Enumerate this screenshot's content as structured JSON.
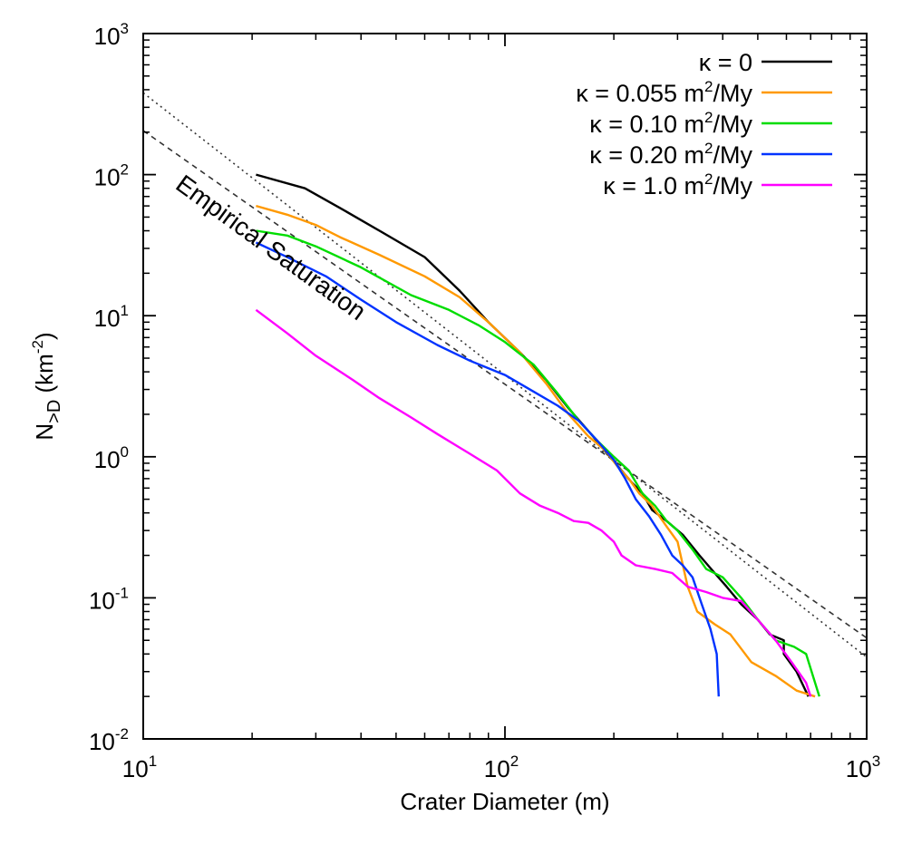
{
  "chart_data": {
    "type": "line",
    "title": "",
    "xlabel": "Crater Diameter (m)",
    "ylabel_main": "N",
    "ylabel_sub": ">D",
    "ylabel_unit_pre": " (km",
    "ylabel_unit_exp": "-2",
    "ylabel_unit_post": ")",
    "xscale": "log",
    "yscale": "log",
    "xlim": [
      10,
      1000
    ],
    "ylim": [
      0.01,
      1000
    ],
    "grid": false,
    "legend_position": "top-right",
    "x_ticks": [
      {
        "value": 10,
        "base": "10",
        "exp": "1"
      },
      {
        "value": 100,
        "base": "10",
        "exp": "2"
      },
      {
        "value": 1000,
        "base": "10",
        "exp": "3"
      }
    ],
    "y_ticks": [
      {
        "value": 0.01,
        "base": "10",
        "exp": "-2"
      },
      {
        "value": 0.1,
        "base": "10",
        "exp": "-1"
      },
      {
        "value": 1,
        "base": "10",
        "exp": "0"
      },
      {
        "value": 10,
        "base": "10",
        "exp": "1"
      },
      {
        "value": 100,
        "base": "10",
        "exp": "2"
      },
      {
        "value": 1000,
        "base": "10",
        "exp": "3"
      }
    ],
    "annotation": "Empirical Saturation",
    "reference_lines": [
      {
        "style": "dotted",
        "points": [
          [
            10,
            380
          ],
          [
            1000,
            0.038
          ]
        ]
      },
      {
        "style": "dashed",
        "points": [
          [
            10,
            205
          ],
          [
            1000,
            0.052
          ]
        ]
      }
    ],
    "series": [
      {
        "name_pre": "κ = 0",
        "name_exp": "",
        "name_post": "",
        "color": "#000000",
        "points": [
          [
            20.5,
            100
          ],
          [
            28,
            80
          ],
          [
            35,
            58
          ],
          [
            45,
            40
          ],
          [
            60,
            26
          ],
          [
            75,
            15
          ],
          [
            90,
            9
          ],
          [
            110,
            5.5
          ],
          [
            130,
            3.5
          ],
          [
            150,
            2.2
          ],
          [
            175,
            1.4
          ],
          [
            195,
            1.0
          ],
          [
            210,
            0.8
          ],
          [
            225,
            0.65
          ],
          [
            240,
            0.55
          ],
          [
            255,
            0.42
          ],
          [
            280,
            0.35
          ],
          [
            310,
            0.28
          ],
          [
            345,
            0.2
          ],
          [
            380,
            0.15
          ],
          [
            410,
            0.12
          ],
          [
            450,
            0.09
          ],
          [
            500,
            0.07
          ],
          [
            540,
            0.055
          ],
          [
            590,
            0.05
          ],
          [
            590,
            0.04
          ],
          [
            640,
            0.03
          ],
          [
            690,
            0.02
          ]
        ]
      },
      {
        "name_pre": "κ = 0.055 m",
        "name_exp": "2",
        "name_post": "/My",
        "color": "#ff9900",
        "points": [
          [
            20.5,
            60
          ],
          [
            25,
            52
          ],
          [
            30,
            44
          ],
          [
            35,
            36
          ],
          [
            45,
            27
          ],
          [
            60,
            19
          ],
          [
            75,
            13.5
          ],
          [
            90,
            9
          ],
          [
            110,
            5.5
          ],
          [
            130,
            3.3
          ],
          [
            150,
            2.0
          ],
          [
            170,
            1.4
          ],
          [
            190,
            1.1
          ],
          [
            205,
            0.85
          ],
          [
            220,
            0.7
          ],
          [
            235,
            0.55
          ],
          [
            255,
            0.45
          ],
          [
            280,
            0.32
          ],
          [
            300,
            0.25
          ],
          [
            320,
            0.12
          ],
          [
            340,
            0.08
          ],
          [
            380,
            0.065
          ],
          [
            420,
            0.055
          ],
          [
            480,
            0.035
          ],
          [
            560,
            0.028
          ],
          [
            640,
            0.022
          ],
          [
            720,
            0.02
          ]
        ]
      },
      {
        "name_pre": "κ = 0.10 m",
        "name_exp": "2",
        "name_post": "/My",
        "color": "#00dd00",
        "points": [
          [
            20.5,
            40
          ],
          [
            25,
            37
          ],
          [
            30,
            31
          ],
          [
            40,
            22
          ],
          [
            55,
            14
          ],
          [
            70,
            11
          ],
          [
            85,
            8.5
          ],
          [
            100,
            6.5
          ],
          [
            120,
            4.5
          ],
          [
            140,
            2.8
          ],
          [
            160,
            1.8
          ],
          [
            180,
            1.3
          ],
          [
            200,
            1.0
          ],
          [
            220,
            0.8
          ],
          [
            240,
            0.55
          ],
          [
            260,
            0.45
          ],
          [
            280,
            0.35
          ],
          [
            300,
            0.3
          ],
          [
            330,
            0.22
          ],
          [
            360,
            0.16
          ],
          [
            400,
            0.14
          ],
          [
            450,
            0.1
          ],
          [
            500,
            0.07
          ],
          [
            560,
            0.05
          ],
          [
            630,
            0.045
          ],
          [
            680,
            0.04
          ],
          [
            740,
            0.02
          ]
        ]
      },
      {
        "name_pre": "κ = 0.20 m",
        "name_exp": "2",
        "name_post": "/My",
        "color": "#0033ff",
        "points": [
          [
            20.5,
            33
          ],
          [
            25,
            26
          ],
          [
            32,
            19
          ],
          [
            40,
            13
          ],
          [
            50,
            9
          ],
          [
            65,
            6.2
          ],
          [
            80,
            4.8
          ],
          [
            100,
            3.8
          ],
          [
            120,
            2.9
          ],
          [
            140,
            2.3
          ],
          [
            160,
            1.8
          ],
          [
            180,
            1.3
          ],
          [
            200,
            0.95
          ],
          [
            215,
            0.7
          ],
          [
            230,
            0.5
          ],
          [
            250,
            0.38
          ],
          [
            270,
            0.28
          ],
          [
            290,
            0.2
          ],
          [
            310,
            0.17
          ],
          [
            330,
            0.14
          ],
          [
            350,
            0.09
          ],
          [
            370,
            0.06
          ],
          [
            385,
            0.04
          ],
          [
            390,
            0.02
          ]
        ]
      },
      {
        "name_pre": "κ = 1.0 m",
        "name_exp": "2",
        "name_post": "/My",
        "color": "#ff00ff",
        "points": [
          [
            20.5,
            11
          ],
          [
            25,
            7.5
          ],
          [
            30,
            5.2
          ],
          [
            38,
            3.5
          ],
          [
            45,
            2.6
          ],
          [
            55,
            1.9
          ],
          [
            65,
            1.45
          ],
          [
            80,
            1.05
          ],
          [
            95,
            0.8
          ],
          [
            110,
            0.55
          ],
          [
            125,
            0.45
          ],
          [
            140,
            0.4
          ],
          [
            155,
            0.35
          ],
          [
            170,
            0.34
          ],
          [
            185,
            0.3
          ],
          [
            200,
            0.25
          ],
          [
            210,
            0.2
          ],
          [
            230,
            0.17
          ],
          [
            260,
            0.16
          ],
          [
            290,
            0.15
          ],
          [
            320,
            0.12
          ],
          [
            360,
            0.11
          ],
          [
            400,
            0.1
          ],
          [
            450,
            0.095
          ],
          [
            500,
            0.07
          ],
          [
            560,
            0.05
          ],
          [
            620,
            0.035
          ],
          [
            680,
            0.025
          ],
          [
            700,
            0.02
          ]
        ]
      }
    ]
  }
}
